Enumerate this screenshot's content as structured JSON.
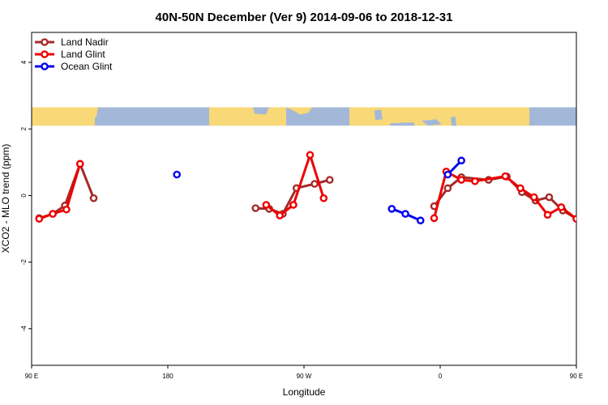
{
  "chart_data": {
    "type": "line",
    "title": "40N-50N December (Ver 9)   2014-09-06 to 2018-12-31",
    "xlabel": "Longitude",
    "ylabel": "XCO2 - MLO trend (ppm)",
    "xlim": [
      90,
      450
    ],
    "ylim": [
      -5.1,
      4.9
    ],
    "x_ticks": [
      {
        "value": 90,
        "label": "90 E"
      },
      {
        "value": 180,
        "label": "180"
      },
      {
        "value": 270,
        "label": "90 W"
      },
      {
        "value": 360,
        "label": "0"
      },
      {
        "value": 450,
        "label": "90 E"
      },
      {
        "value": 540,
        "label": "180"
      }
    ],
    "y_ticks": [
      {
        "value": -4,
        "label": "-4"
      },
      {
        "value": -2,
        "label": "-2"
      },
      {
        "value": 0,
        "label": "0"
      },
      {
        "value": 2,
        "label": "2"
      },
      {
        "value": 4,
        "label": "4"
      }
    ],
    "map_strip": {
      "y_range": [
        2.1,
        2.65
      ]
    },
    "legend": {
      "position": "top-left",
      "entries": [
        "Land Nadir",
        "Land Glint",
        "Ocean Glint"
      ]
    },
    "series": [
      {
        "name": "Land Nadir",
        "color": "#a52a2a",
        "line_width": 3,
        "segments": [
          [
            [
              95,
              -0.68
            ],
            [
              104,
              -0.55
            ],
            [
              112,
              -0.3
            ],
            [
              122,
              0.95
            ],
            [
              131,
              -0.08
            ]
          ],
          [
            [
              238,
              -0.38
            ],
            [
              247,
              -0.4
            ],
            [
              256,
              -0.55
            ],
            [
              265,
              0.22
            ],
            [
              277,
              0.35
            ],
            [
              287,
              0.47
            ]
          ],
          [
            [
              356,
              -0.32
            ],
            [
              365,
              0.22
            ],
            [
              374,
              0.55
            ],
            [
              392,
              0.47
            ],
            [
              404,
              0.57
            ],
            [
              414,
              0.1
            ],
            [
              423,
              -0.15
            ],
            [
              432,
              -0.05
            ],
            [
              441,
              -0.45
            ],
            [
              451,
              -0.72
            ],
            [
              460,
              -0.55
            ],
            [
              469,
              -0.32
            ],
            [
              479,
              0.95
            ],
            [
              488,
              -0.08
            ]
          ]
        ]
      },
      {
        "name": "Land Glint",
        "color": "#ee0000",
        "line_width": 3,
        "segments": [
          [
            [
              95,
              -0.7
            ],
            [
              104,
              -0.55
            ],
            [
              113,
              -0.42
            ],
            [
              122,
              0.95
            ]
          ],
          [
            [
              245,
              -0.28
            ],
            [
              254,
              -0.6
            ],
            [
              263,
              -0.28
            ],
            [
              274,
              1.22
            ],
            [
              283,
              -0.08
            ]
          ],
          [
            [
              356,
              -0.68
            ],
            [
              364,
              0.72
            ],
            [
              374,
              0.47
            ],
            [
              383,
              0.43
            ],
            [
              403,
              0.58
            ],
            [
              413,
              0.22
            ],
            [
              422,
              -0.05
            ],
            [
              431,
              -0.58
            ],
            [
              440,
              -0.35
            ],
            [
              450,
              -0.7
            ],
            [
              460,
              -0.58
            ],
            [
              470,
              -0.42
            ],
            [
              479,
              0.95
            ]
          ]
        ]
      },
      {
        "name": "Ocean Glint",
        "color": "#0000ee",
        "line_width": 3,
        "segments": [
          [
            [
              186,
              0.63
            ]
          ],
          [
            [
              328,
              -0.4
            ],
            [
              337,
              -0.55
            ],
            [
              347,
              -0.75
            ]
          ],
          [
            [
              365,
              0.63
            ],
            [
              374,
              1.05
            ]
          ]
        ]
      }
    ]
  }
}
